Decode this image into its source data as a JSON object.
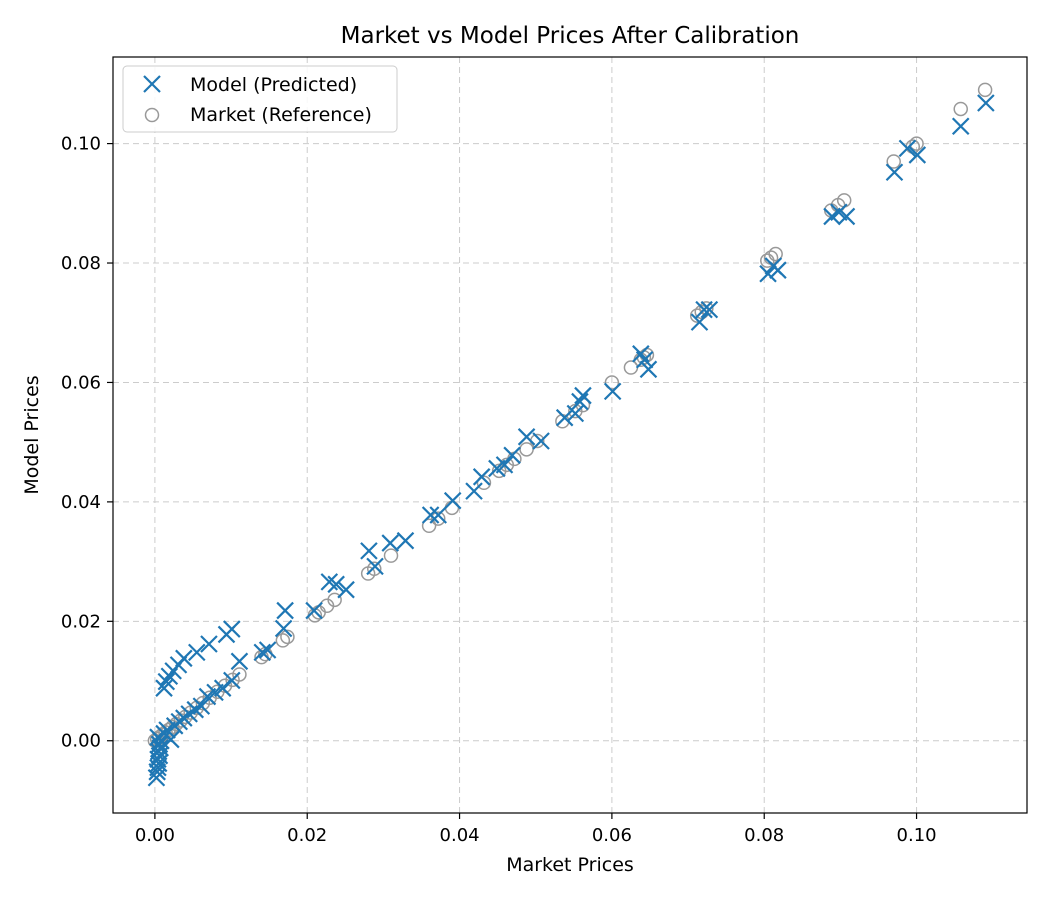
{
  "chart_data": {
    "type": "scatter",
    "title": "Market vs Model Prices After Calibration",
    "xlabel": "Market Prices",
    "ylabel": "Model Prices",
    "xlim": [
      -0.0055,
      0.1145
    ],
    "ylim": [
      -0.0121,
      0.1145
    ],
    "xticks": [
      0.0,
      0.02,
      0.04,
      0.06,
      0.08,
      0.1
    ],
    "xtick_labels": [
      "0.00",
      "0.02",
      "0.04",
      "0.06",
      "0.08",
      "0.10"
    ],
    "yticks": [
      0.0,
      0.02,
      0.04,
      0.06,
      0.08,
      0.1
    ],
    "ytick_labels": [
      "0.00",
      "0.02",
      "0.04",
      "0.06",
      "0.08",
      "0.10"
    ],
    "grid": true,
    "legend_position": "top-left",
    "colors": {
      "model": "#1f77b4",
      "market": "#999999",
      "grid": "#cccccc"
    },
    "series": [
      {
        "name": "Model (Predicted)",
        "marker": "x",
        "points": [
          [
            0.0002,
            -0.0062
          ],
          [
            0.0003,
            -0.0052
          ],
          [
            0.0004,
            -0.0045
          ],
          [
            0.0005,
            -0.0038
          ],
          [
            0.0004,
            -0.0031
          ],
          [
            0.0006,
            -0.0025
          ],
          [
            0.0005,
            -0.0018
          ],
          [
            0.0007,
            -0.0012
          ],
          [
            0.0006,
            -0.0006
          ],
          [
            0.0008,
            0.0
          ],
          [
            0.0004,
            0.0006
          ],
          [
            0.0012,
            0.0012
          ],
          [
            0.0016,
            0.0018
          ],
          [
            0.0021,
            0.0002
          ],
          [
            0.0026,
            0.0025
          ],
          [
            0.0032,
            0.0032
          ],
          [
            0.0038,
            0.0038
          ],
          [
            0.0045,
            0.0045
          ],
          [
            0.0053,
            0.0052
          ],
          [
            0.0061,
            0.0058
          ],
          [
            0.0069,
            0.0074
          ],
          [
            0.0079,
            0.0081
          ],
          [
            0.0089,
            0.0088
          ],
          [
            0.0101,
            0.0101
          ],
          [
            0.0111,
            0.0133
          ],
          [
            0.0012,
            0.0088
          ],
          [
            0.0015,
            0.0099
          ],
          [
            0.0019,
            0.0108
          ],
          [
            0.0024,
            0.0117
          ],
          [
            0.0031,
            0.0127
          ],
          [
            0.0038,
            0.0138
          ],
          [
            0.0055,
            0.0148
          ],
          [
            0.0071,
            0.0162
          ],
          [
            0.0094,
            0.0178
          ],
          [
            0.0101,
            0.0187
          ],
          [
            0.0141,
            0.0148
          ],
          [
            0.0148,
            0.0152
          ],
          [
            0.0169,
            0.0188
          ],
          [
            0.0171,
            0.0218
          ],
          [
            0.0209,
            0.0218
          ],
          [
            0.0229,
            0.0266
          ],
          [
            0.0238,
            0.0262
          ],
          [
            0.0251,
            0.0253
          ],
          [
            0.0281,
            0.0318
          ],
          [
            0.0289,
            0.0292
          ],
          [
            0.0309,
            0.0331
          ],
          [
            0.0329,
            0.0335
          ],
          [
            0.0362,
            0.0378
          ],
          [
            0.0372,
            0.0378
          ],
          [
            0.0391,
            0.0402
          ],
          [
            0.0419,
            0.0418
          ],
          [
            0.0429,
            0.0442
          ],
          [
            0.0449,
            0.0456
          ],
          [
            0.0459,
            0.0462
          ],
          [
            0.0469,
            0.0478
          ],
          [
            0.0488,
            0.0509
          ],
          [
            0.0507,
            0.0502
          ],
          [
            0.0538,
            0.0541
          ],
          [
            0.0552,
            0.0548
          ],
          [
            0.0558,
            0.0568
          ],
          [
            0.0562,
            0.0578
          ],
          [
            0.0601,
            0.0585
          ],
          [
            0.0638,
            0.0648
          ],
          [
            0.0643,
            0.0638
          ],
          [
            0.0648,
            0.0622
          ],
          [
            0.0715,
            0.0701
          ],
          [
            0.0721,
            0.0722
          ],
          [
            0.0728,
            0.0722
          ],
          [
            0.0805,
            0.0782
          ],
          [
            0.0812,
            0.0795
          ],
          [
            0.0818,
            0.0788
          ],
          [
            0.0889,
            0.0878
          ],
          [
            0.0898,
            0.0885
          ],
          [
            0.0908,
            0.0878
          ],
          [
            0.0971,
            0.0952
          ],
          [
            0.0988,
            0.0992
          ],
          [
            0.1001,
            0.0981
          ],
          [
            0.1058,
            0.1029
          ],
          [
            0.1091,
            0.1068
          ]
        ]
      },
      {
        "name": "Market (Reference)",
        "marker": "o",
        "points": [
          [
            0.0,
            0.0
          ],
          [
            0.0003,
            0.0003
          ],
          [
            0.0006,
            0.0006
          ],
          [
            0.001,
            0.001
          ],
          [
            0.0014,
            0.0014
          ],
          [
            0.0018,
            0.0018
          ],
          [
            0.0023,
            0.0023
          ],
          [
            0.0028,
            0.0028
          ],
          [
            0.0034,
            0.0034
          ],
          [
            0.004,
            0.004
          ],
          [
            0.0047,
            0.0047
          ],
          [
            0.0055,
            0.0055
          ],
          [
            0.0063,
            0.0063
          ],
          [
            0.0072,
            0.0072
          ],
          [
            0.0082,
            0.0082
          ],
          [
            0.0092,
            0.0092
          ],
          [
            0.0102,
            0.0102
          ],
          [
            0.0111,
            0.0111
          ],
          [
            0.014,
            0.014
          ],
          [
            0.0145,
            0.0145
          ],
          [
            0.0168,
            0.0168
          ],
          [
            0.0174,
            0.0174
          ],
          [
            0.021,
            0.021
          ],
          [
            0.0215,
            0.0215
          ],
          [
            0.0226,
            0.0226
          ],
          [
            0.0236,
            0.0236
          ],
          [
            0.028,
            0.028
          ],
          [
            0.0288,
            0.0288
          ],
          [
            0.031,
            0.031
          ],
          [
            0.036,
            0.036
          ],
          [
            0.0372,
            0.0372
          ],
          [
            0.039,
            0.039
          ],
          [
            0.0432,
            0.0432
          ],
          [
            0.0452,
            0.0452
          ],
          [
            0.0462,
            0.0462
          ],
          [
            0.0472,
            0.0472
          ],
          [
            0.0488,
            0.0488
          ],
          [
            0.0502,
            0.0502
          ],
          [
            0.0535,
            0.0535
          ],
          [
            0.0552,
            0.0552
          ],
          [
            0.0562,
            0.0562
          ],
          [
            0.06,
            0.06
          ],
          [
            0.0625,
            0.0625
          ],
          [
            0.0638,
            0.0638
          ],
          [
            0.0642,
            0.0642
          ],
          [
            0.0646,
            0.0646
          ],
          [
            0.0712,
            0.0712
          ],
          [
            0.0718,
            0.0718
          ],
          [
            0.0724,
            0.0724
          ],
          [
            0.0804,
            0.0804
          ],
          [
            0.0809,
            0.0809
          ],
          [
            0.0815,
            0.0815
          ],
          [
            0.0888,
            0.0888
          ],
          [
            0.0897,
            0.0897
          ],
          [
            0.0905,
            0.0905
          ],
          [
            0.097,
            0.097
          ],
          [
            0.0995,
            0.0995
          ],
          [
            0.1,
            0.1
          ],
          [
            0.1058,
            0.1058
          ],
          [
            0.109,
            0.109
          ]
        ]
      }
    ]
  }
}
